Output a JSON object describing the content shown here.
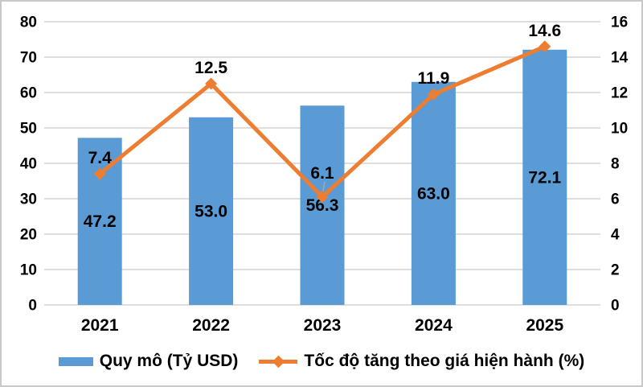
{
  "chart_data": {
    "type": "bar",
    "subtype": "combo-bar-line",
    "categories": [
      "2021",
      "2022",
      "2023",
      "2024",
      "2025"
    ],
    "series": [
      {
        "name": "Quy mô (Tỷ USD)",
        "type": "bar",
        "axis": "left",
        "values": [
          47.2,
          53.0,
          56.3,
          63.0,
          72.1
        ],
        "labels": [
          "47.2",
          "53.0",
          "56.3",
          "63.0",
          "72.1"
        ]
      },
      {
        "name": "Tốc độ tăng theo giá hiện hành (%)",
        "type": "line",
        "axis": "right",
        "marker": "diamond",
        "values": [
          7.4,
          12.5,
          6.1,
          11.9,
          14.6
        ],
        "labels": [
          "7.4",
          "12.5",
          "6.1",
          "11.9",
          "14.6"
        ]
      }
    ],
    "title": "",
    "xlabel": "",
    "ylabel": "",
    "left_axis": {
      "min": 0,
      "max": 80,
      "step": 10,
      "ticks": [
        "0",
        "10",
        "20",
        "30",
        "40",
        "50",
        "60",
        "70",
        "80"
      ]
    },
    "right_axis": {
      "min": 0,
      "max": 16,
      "step": 2,
      "ticks": [
        "0",
        "2",
        "4",
        "6",
        "8",
        "10",
        "12",
        "14",
        "16"
      ]
    },
    "grid": true,
    "legend_position": "bottom"
  },
  "colors": {
    "bar": "#5B9BD5",
    "line": "#ED7D31",
    "grid": "#D9D9D9",
    "text": "#000000",
    "leader_line": "#A6A6A6",
    "frame_border": "#C9C9C9",
    "background": "#FFFFFF"
  },
  "legend": {
    "items": [
      {
        "label": "Quy mô (Tỷ USD)"
      },
      {
        "label": "Tốc độ tăng theo giá hiện hành (%)"
      }
    ]
  }
}
